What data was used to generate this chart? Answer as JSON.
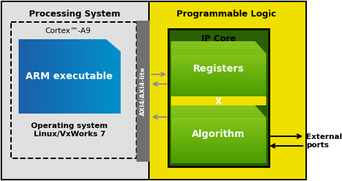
{
  "fig_width": 4.96,
  "fig_height": 2.63,
  "dpi": 100,
  "bg_color": "#ffffff",
  "ps_bg": "#e0e0e0",
  "pl_bg": "#f0e000",
  "axi_bar_color": "#707070",
  "arm_color_left": "#1a5fa8",
  "arm_color_right": "#0090cc",
  "arm_text": "ARM executable",
  "arm_text_color": "#ffffff",
  "axi_text": "AXI4/AXI4-lite",
  "ipcore_bg": "#2a6000",
  "reg_color_top": "#90d020",
  "reg_color_bottom": "#4a9a00",
  "algo_color_top": "#90d020",
  "algo_color_bottom": "#4a9a00",
  "reg_text": "Registers",
  "algo_text": "Algorithm",
  "box_text_color": "#ffffff",
  "ps_label": "Processing System",
  "pl_label": "Programmable Logic",
  "cortex_label": "Cortex™-A9",
  "os_label": "Operating system\nLinux/VxWorks 7",
  "ipcore_label": "IP Core",
  "ext_ports_label": "External\nports",
  "border_color": "#000000",
  "arrow_gray": "#909090",
  "arrow_black": "#000000"
}
